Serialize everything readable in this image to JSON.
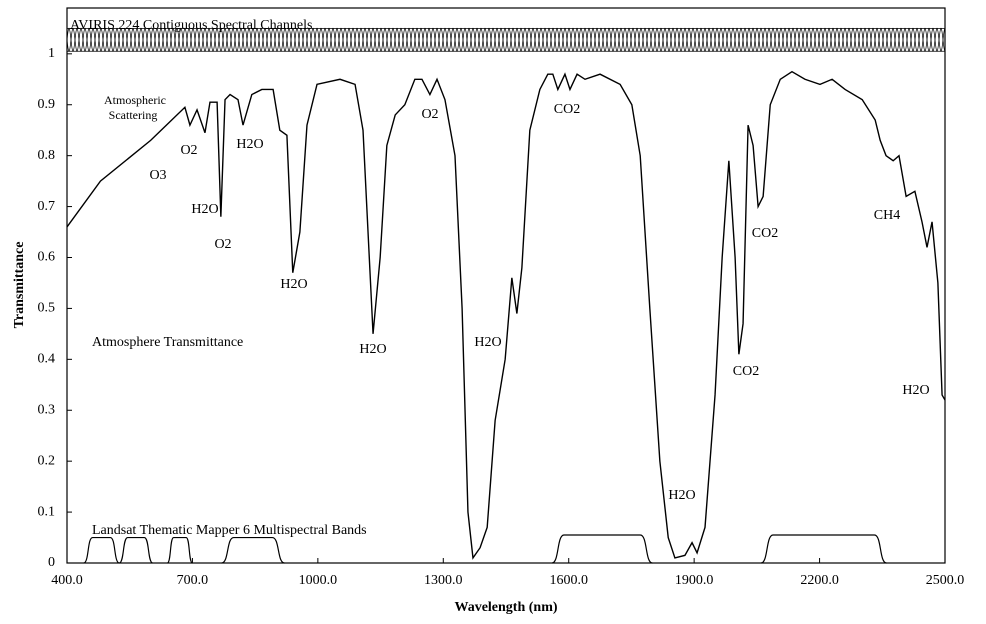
{
  "chart_data": {
    "type": "line",
    "x_label": "Wavelength (nm)",
    "y_label": "Transmittance",
    "xlim": [
      400,
      2500
    ],
    "ylim": [
      0,
      1.09
    ],
    "xticks": [
      {
        "value": 400,
        "label": "400.0"
      },
      {
        "value": 700,
        "label": "700.0"
      },
      {
        "value": 1000,
        "label": "1000.0"
      },
      {
        "value": 1300,
        "label": "1300.0"
      },
      {
        "value": 1600,
        "label": "1600.0"
      },
      {
        "value": 1900,
        "label": "1900.0"
      },
      {
        "value": 2200,
        "label": "2200.0"
      },
      {
        "value": 2500,
        "label": "2500.0"
      }
    ],
    "yticks": [
      0,
      0.1,
      0.2,
      0.3,
      0.4,
      0.5,
      0.6,
      0.7,
      0.8,
      0.9,
      1
    ],
    "series": [
      {
        "name": "Atmosphere Transmittance",
        "color": "#000000",
        "x": [
          400,
          480,
          600,
          682,
          694,
          711,
          730,
          742,
          759,
          768,
          778,
          790,
          809,
          821,
          842,
          866,
          893,
          909,
          926,
          940,
          957,
          974,
          998,
          1053,
          1089,
          1108,
          1132,
          1149,
          1165,
          1185,
          1208,
          1232,
          1249,
          1268,
          1285,
          1304,
          1328,
          1345,
          1359,
          1371,
          1388,
          1405,
          1424,
          1448,
          1464,
          1476,
          1488,
          1507,
          1531,
          1550,
          1562,
          1574,
          1591,
          1603,
          1620,
          1639,
          1675,
          1723,
          1751,
          1771,
          1794,
          1818,
          1838,
          1854,
          1878,
          1895,
          1907,
          1926,
          1950,
          1967,
          1983,
          1998,
          2007,
          2017,
          2029,
          2041,
          2053,
          2065,
          2082,
          2106,
          2134,
          2165,
          2201,
          2230,
          2261,
          2302,
          2333,
          2345,
          2359,
          2376,
          2390,
          2407,
          2428,
          2445,
          2457,
          2469,
          2483,
          2493,
          2500
        ],
        "values": [
          0.66,
          0.75,
          0.83,
          0.895,
          0.86,
          0.89,
          0.845,
          0.905,
          0.905,
          0.68,
          0.91,
          0.92,
          0.91,
          0.86,
          0.92,
          0.93,
          0.93,
          0.85,
          0.84,
          0.57,
          0.65,
          0.86,
          0.94,
          0.95,
          0.94,
          0.85,
          0.45,
          0.6,
          0.82,
          0.88,
          0.9,
          0.95,
          0.95,
          0.92,
          0.95,
          0.91,
          0.8,
          0.5,
          0.1,
          0.01,
          0.03,
          0.07,
          0.28,
          0.4,
          0.56,
          0.49,
          0.58,
          0.85,
          0.93,
          0.96,
          0.96,
          0.93,
          0.96,
          0.93,
          0.96,
          0.95,
          0.96,
          0.94,
          0.9,
          0.8,
          0.5,
          0.2,
          0.05,
          0.01,
          0.015,
          0.04,
          0.02,
          0.07,
          0.33,
          0.6,
          0.79,
          0.6,
          0.41,
          0.47,
          0.86,
          0.82,
          0.7,
          0.72,
          0.9,
          0.95,
          0.965,
          0.95,
          0.94,
          0.95,
          0.93,
          0.91,
          0.87,
          0.83,
          0.8,
          0.79,
          0.8,
          0.72,
          0.73,
          0.67,
          0.62,
          0.67,
          0.55,
          0.33,
          0.32
        ]
      }
    ],
    "landsat": {
      "name": "Landsat Thematic Mapper 6 Multispectral Bands",
      "bands": [
        {
          "range": [
            440,
            525
          ],
          "value": 0.05
        },
        {
          "range": [
            525,
            605
          ],
          "value": 0.05
        },
        {
          "range": [
            640,
            700
          ],
          "value": 0.05
        },
        {
          "range": [
            770,
            920
          ],
          "value": 0.05
        },
        {
          "range": [
            1560,
            1800
          ],
          "value": 0.055
        },
        {
          "range": [
            2060,
            2360
          ],
          "value": 0.055
        }
      ]
    },
    "aviris": {
      "name": "AVIRIS 224 Contiguous Spectral Channels",
      "band": [
        1.005,
        1.05
      ]
    },
    "annotations": [
      "Atmospheric",
      "Scattering",
      "O3",
      "O2",
      "H2O",
      "H2O",
      "O2",
      "H2O",
      "H2O",
      "O2",
      "CO2",
      "H2O",
      "H2O",
      "CO2",
      "CO2",
      "CH4",
      "H2O"
    ]
  }
}
